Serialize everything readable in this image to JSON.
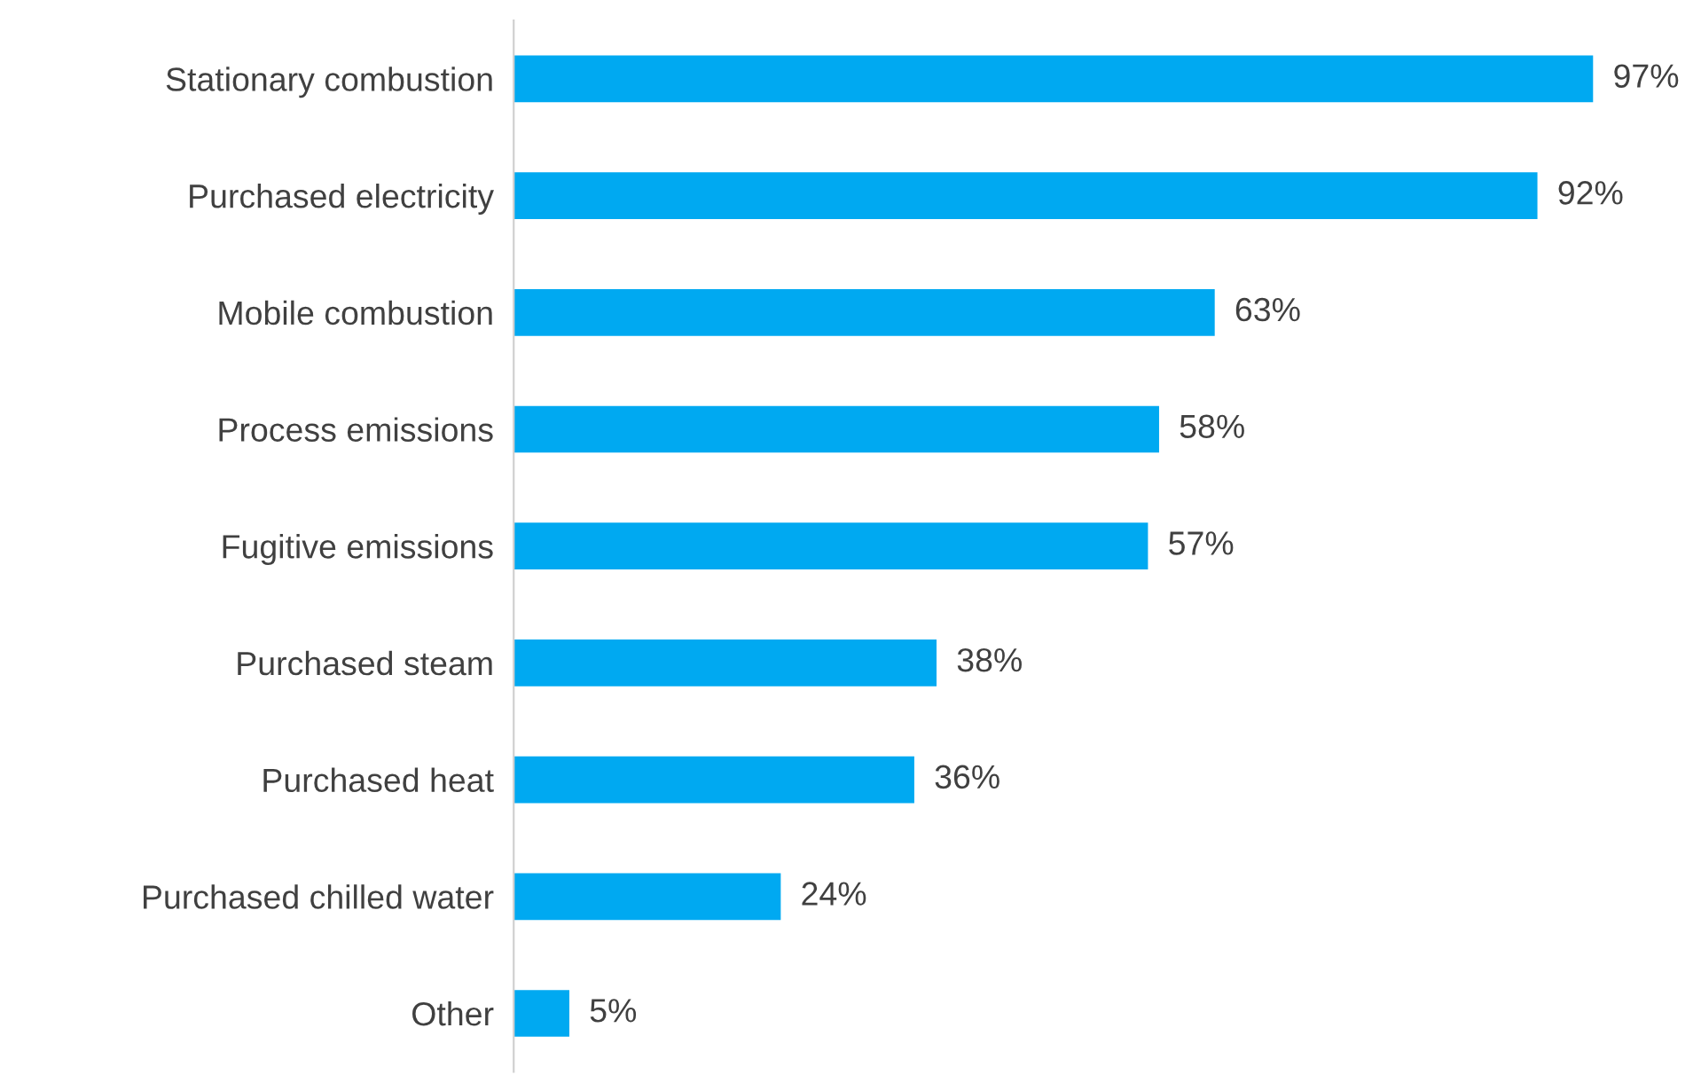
{
  "chart_data": {
    "type": "bar",
    "orientation": "horizontal",
    "categories": [
      "Stationary combustion",
      "Purchased electricity",
      "Mobile combustion",
      "Process emissions",
      "Fugitive emissions",
      "Purchased steam",
      "Purchased heat",
      "Purchased chilled water",
      "Other"
    ],
    "values": [
      97,
      92,
      63,
      58,
      57,
      38,
      36,
      24,
      5
    ],
    "value_labels": [
      "97%",
      "92%",
      "63%",
      "58%",
      "57%",
      "38%",
      "36%",
      "24%",
      "5%"
    ],
    "color": "#00a9f1",
    "grid": false,
    "legend": false
  }
}
